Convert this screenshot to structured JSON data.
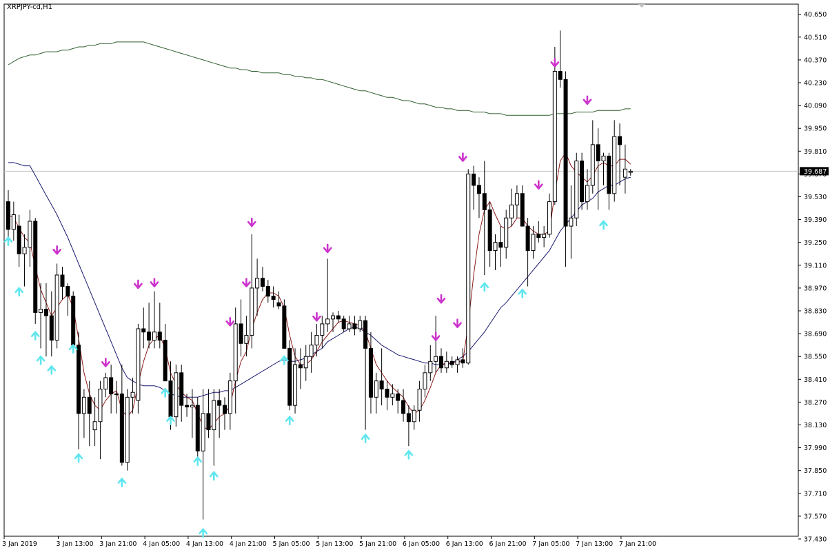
{
  "window": {
    "symbol_label": "XRPJPY-cd,H1"
  },
  "colors": {
    "background": "#ffffff",
    "candle": "#000000",
    "ma_fast": "#8b1a1a",
    "ma_mid": "#191970",
    "ma_slow": "#2f5e2f",
    "arrow_up": "#5fe6ee",
    "arrow_down": "#cc33cc",
    "bid_line": "#c0c0c0",
    "price_tag_bg": "#000000",
    "price_tag_text": "#ffffff"
  },
  "chart_data": {
    "type": "candlestick",
    "symbol": "XRPJPY-cd",
    "timeframe": "H1",
    "current_price_label": "39.687",
    "current_price": 39.687,
    "ylim": [
      37.43,
      40.67
    ],
    "y_ticks": [
      "40.650",
      "40.510",
      "40.370",
      "40.230",
      "40.090",
      "39.950",
      "39.810",
      "39.670",
      "39.530",
      "39.390",
      "39.250",
      "39.110",
      "38.970",
      "38.830",
      "38.690",
      "38.550",
      "38.410",
      "38.270",
      "38.130",
      "37.990",
      "37.850",
      "37.710",
      "37.570",
      "37.430"
    ],
    "x_ticks": [
      {
        "label": "3 Jan 2019",
        "index": 0
      },
      {
        "label": "3 Jan 13:00",
        "index": 10
      },
      {
        "label": "3 Jan 21:00",
        "index": 18
      },
      {
        "label": "4 Jan 05:00",
        "index": 26
      },
      {
        "label": "4 Jan 13:00",
        "index": 34
      },
      {
        "label": "4 Jan 21:00",
        "index": 42
      },
      {
        "label": "5 Jan 05:00",
        "index": 50
      },
      {
        "label": "5 Jan 13:00",
        "index": 58
      },
      {
        "label": "5 Jan 21:00",
        "index": 66
      },
      {
        "label": "6 Jan 05:00",
        "index": 74
      },
      {
        "label": "6 Jan 13:00",
        "index": 82
      },
      {
        "label": "6 Jan 21:00",
        "index": 90
      },
      {
        "label": "7 Jan 05:00",
        "index": 98
      },
      {
        "label": "7 Jan 13:00",
        "index": 106
      },
      {
        "label": "7 Jan 21:00",
        "index": 114
      }
    ],
    "candles": [
      [
        39.5,
        39.57,
        39.25,
        39.33
      ],
      [
        39.33,
        39.5,
        39.26,
        39.42
      ],
      [
        39.35,
        39.42,
        39.1,
        39.18
      ],
      [
        39.18,
        39.3,
        38.98,
        39.22
      ],
      [
        39.22,
        39.45,
        39.1,
        39.38
      ],
      [
        39.38,
        39.4,
        38.75,
        38.82
      ],
      [
        38.82,
        39.0,
        38.6,
        38.84
      ],
      [
        38.84,
        39.0,
        38.55,
        38.8
      ],
      [
        38.8,
        38.95,
        38.55,
        38.65
      ],
      [
        38.65,
        39.12,
        38.6,
        39.05
      ],
      [
        39.05,
        39.1,
        38.9,
        38.98
      ],
      [
        38.98,
        39.0,
        38.8,
        38.92
      ],
      [
        38.92,
        38.95,
        38.6,
        38.62
      ],
      [
        38.62,
        38.7,
        37.98,
        38.2
      ],
      [
        38.2,
        38.35,
        38.05,
        38.3
      ],
      [
        38.3,
        38.4,
        38.0,
        38.2
      ],
      [
        38.1,
        38.3,
        38.0,
        38.15
      ],
      [
        38.15,
        38.4,
        37.92,
        38.35
      ],
      [
        38.35,
        38.45,
        38.3,
        38.42
      ],
      [
        38.42,
        38.5,
        38.2,
        38.32
      ],
      [
        38.32,
        38.4,
        38.2,
        38.32
      ],
      [
        38.32,
        38.5,
        37.88,
        37.9
      ],
      [
        37.9,
        38.35,
        37.85,
        38.3
      ],
      [
        38.3,
        38.42,
        38.2,
        38.33
      ],
      [
        38.28,
        38.75,
        38.2,
        38.72
      ],
      [
        38.72,
        38.85,
        38.6,
        38.7
      ],
      [
        38.7,
        38.88,
        38.6,
        38.65
      ],
      [
        38.65,
        38.95,
        38.6,
        38.7
      ],
      [
        38.7,
        38.88,
        38.6,
        38.65
      ],
      [
        38.65,
        38.75,
        38.4,
        38.4
      ],
      [
        38.4,
        38.52,
        38.1,
        38.18
      ],
      [
        38.18,
        38.5,
        38.12,
        38.45
      ],
      [
        38.45,
        38.5,
        38.15,
        38.25
      ],
      [
        38.25,
        38.32,
        38.18,
        38.24
      ],
      [
        38.24,
        38.35,
        38.05,
        38.25
      ],
      [
        38.25,
        38.3,
        37.9,
        37.97
      ],
      [
        37.97,
        38.35,
        37.55,
        38.2
      ],
      [
        38.2,
        38.35,
        38.05,
        38.1
      ],
      [
        38.1,
        38.35,
        37.88,
        38.28
      ],
      [
        38.28,
        38.35,
        38.05,
        38.25
      ],
      [
        38.25,
        38.3,
        38.1,
        38.2
      ],
      [
        38.2,
        38.45,
        38.1,
        38.4
      ],
      [
        38.4,
        38.85,
        38.2,
        38.75
      ],
      [
        38.75,
        38.9,
        38.55,
        38.63
      ],
      [
        38.63,
        38.8,
        38.55,
        38.68
      ],
      [
        38.68,
        39.3,
        38.6,
        38.97
      ],
      [
        38.97,
        39.15,
        38.8,
        39.03
      ],
      [
        39.03,
        39.1,
        38.95,
        38.98
      ],
      [
        38.98,
        39.02,
        38.88,
        38.92
      ],
      [
        38.92,
        38.98,
        38.85,
        38.9
      ],
      [
        38.88,
        38.95,
        38.84,
        38.86
      ],
      [
        38.86,
        38.9,
        38.6,
        38.6
      ],
      [
        38.6,
        38.65,
        38.22,
        38.25
      ],
      [
        38.25,
        38.6,
        38.2,
        38.5
      ],
      [
        38.5,
        38.6,
        38.35,
        38.48
      ],
      [
        38.48,
        38.62,
        38.4,
        38.55
      ],
      [
        38.55,
        38.7,
        38.45,
        38.62
      ],
      [
        38.62,
        38.75,
        38.55,
        38.68
      ],
      [
        38.68,
        38.8,
        38.6,
        38.75
      ],
      [
        38.75,
        39.15,
        38.7,
        38.78
      ],
      [
        38.78,
        38.82,
        38.7,
        38.8
      ],
      [
        38.8,
        38.83,
        38.76,
        38.78
      ],
      [
        38.78,
        38.8,
        38.7,
        38.72
      ],
      [
        38.72,
        38.8,
        38.7,
        38.75
      ],
      [
        38.75,
        38.8,
        38.68,
        38.72
      ],
      [
        38.72,
        38.8,
        38.7,
        38.77
      ],
      [
        38.77,
        38.8,
        38.1,
        38.6
      ],
      [
        38.6,
        38.7,
        38.2,
        38.3
      ],
      [
        38.3,
        38.45,
        38.2,
        38.4
      ],
      [
        38.4,
        38.6,
        38.25,
        38.35
      ],
      [
        38.35,
        38.4,
        38.22,
        38.3
      ],
      [
        38.3,
        38.38,
        38.25,
        38.32
      ],
      [
        38.32,
        38.35,
        38.2,
        38.28
      ],
      [
        38.28,
        38.35,
        38.15,
        38.2
      ],
      [
        38.2,
        38.25,
        38.0,
        38.15
      ],
      [
        38.15,
        38.25,
        38.1,
        38.22
      ],
      [
        38.22,
        38.4,
        38.15,
        38.35
      ],
      [
        38.35,
        38.5,
        38.3,
        38.45
      ],
      [
        38.45,
        38.62,
        38.4,
        38.52
      ],
      [
        38.52,
        38.8,
        38.45,
        38.55
      ],
      [
        38.55,
        38.6,
        38.45,
        38.48
      ],
      [
        38.48,
        38.58,
        38.45,
        38.52
      ],
      [
        38.52,
        38.55,
        38.48,
        38.5
      ],
      [
        38.5,
        38.55,
        38.45,
        38.53
      ],
      [
        38.53,
        38.6,
        38.48,
        38.51
      ],
      [
        38.51,
        39.7,
        38.5,
        39.67
      ],
      [
        39.67,
        39.72,
        39.45,
        39.6
      ],
      [
        39.6,
        39.65,
        39.4,
        39.55
      ],
      [
        39.55,
        39.75,
        39.05,
        39.45
      ],
      [
        39.45,
        39.5,
        39.1,
        39.2
      ],
      [
        39.2,
        39.3,
        39.08,
        39.25
      ],
      [
        39.25,
        39.35,
        39.1,
        39.22
      ],
      [
        39.22,
        39.45,
        39.15,
        39.4
      ],
      [
        39.4,
        39.58,
        39.35,
        39.48
      ],
      [
        39.48,
        39.6,
        39.4,
        39.55
      ],
      [
        39.55,
        39.6,
        39.35,
        39.35
      ],
      [
        39.35,
        39.4,
        38.98,
        39.2
      ],
      [
        39.2,
        39.35,
        39.15,
        39.3
      ],
      [
        39.3,
        39.38,
        39.25,
        39.28
      ],
      [
        39.28,
        39.35,
        39.22,
        39.3
      ],
      [
        39.3,
        39.55,
        39.28,
        39.5
      ],
      [
        39.5,
        40.45,
        39.48,
        40.3
      ],
      [
        40.3,
        40.55,
        40.2,
        40.25
      ],
      [
        40.25,
        40.3,
        39.1,
        39.35
      ],
      [
        39.35,
        39.6,
        39.15,
        39.4
      ],
      [
        39.4,
        39.8,
        39.35,
        39.75
      ],
      [
        39.75,
        39.8,
        39.45,
        39.5
      ],
      [
        39.5,
        39.7,
        39.45,
        39.6
      ],
      [
        39.6,
        40.0,
        39.55,
        39.85
      ],
      [
        39.85,
        39.95,
        39.45,
        39.75
      ],
      [
        39.75,
        39.8,
        39.6,
        39.78
      ],
      [
        39.78,
        39.8,
        39.45,
        39.55
      ],
      [
        39.55,
        40.0,
        39.5,
        39.9
      ],
      [
        39.9,
        39.98,
        39.6,
        39.85
      ],
      [
        39.65,
        39.85,
        39.55,
        39.7
      ],
      [
        39.68,
        39.7,
        39.66,
        39.687
      ]
    ],
    "ma_fast": [
      39.42,
      39.4,
      39.34,
      39.28,
      39.25,
      39.1,
      38.96,
      38.88,
      38.8,
      38.85,
      38.9,
      38.93,
      38.85,
      38.66,
      38.45,
      38.32,
      38.25,
      38.22,
      38.28,
      38.32,
      38.34,
      38.22,
      38.18,
      38.22,
      38.38,
      38.52,
      38.62,
      38.66,
      38.68,
      38.6,
      38.45,
      38.38,
      38.33,
      38.3,
      38.28,
      38.2,
      38.12,
      38.1,
      38.14,
      38.18,
      38.2,
      38.25,
      38.4,
      38.52,
      38.58,
      38.72,
      38.82,
      38.9,
      38.94,
      38.94,
      38.92,
      38.85,
      38.68,
      38.55,
      38.5,
      38.5,
      38.53,
      38.58,
      38.64,
      38.68,
      38.72,
      38.76,
      38.77,
      38.76,
      38.75,
      38.74,
      38.7,
      38.6,
      38.5,
      38.45,
      38.4,
      38.36,
      38.33,
      38.3,
      38.24,
      38.2,
      38.22,
      38.28,
      38.36,
      38.45,
      38.5,
      38.51,
      38.51,
      38.52,
      38.52,
      38.75,
      39.05,
      39.3,
      39.45,
      39.5,
      39.42,
      39.35,
      39.33,
      39.35,
      39.4,
      39.4,
      39.35,
      39.32,
      39.3,
      39.3,
      39.32,
      39.55,
      39.75,
      39.8,
      39.72,
      39.68,
      39.65,
      39.62,
      39.66,
      39.72,
      39.74,
      39.72,
      39.72,
      39.76,
      39.76,
      39.73
    ],
    "ma_mid": [
      39.74,
      39.74,
      39.73,
      39.72,
      39.72,
      39.66,
      39.6,
      39.54,
      39.48,
      39.42,
      39.35,
      39.28,
      39.2,
      39.12,
      39.04,
      38.96,
      38.88,
      38.8,
      38.72,
      38.64,
      38.56,
      38.48,
      38.42,
      38.4,
      38.38,
      38.37,
      38.37,
      38.37,
      38.36,
      38.34,
      38.32,
      38.31,
      38.3,
      38.3,
      38.3,
      38.3,
      38.31,
      38.32,
      38.33,
      38.33,
      38.34,
      38.34,
      38.36,
      38.38,
      38.4,
      38.42,
      38.44,
      38.46,
      38.48,
      38.5,
      38.52,
      38.53,
      38.52,
      38.52,
      38.53,
      38.54,
      38.56,
      38.58,
      38.6,
      38.64,
      38.66,
      38.68,
      38.7,
      38.72,
      38.73,
      38.72,
      38.7,
      38.68,
      38.65,
      38.62,
      38.6,
      38.58,
      38.56,
      38.55,
      38.54,
      38.53,
      38.52,
      38.51,
      38.51,
      38.5,
      38.5,
      38.5,
      38.51,
      38.53,
      38.55,
      38.58,
      38.62,
      38.66,
      38.7,
      38.75,
      38.8,
      38.85,
      38.88,
      38.92,
      38.96,
      39.0,
      39.04,
      39.08,
      39.12,
      39.16,
      39.2,
      39.26,
      39.32,
      39.36,
      39.4,
      39.44,
      39.48,
      39.5,
      39.52,
      39.56,
      39.58,
      39.6,
      39.6,
      39.62,
      39.64,
      39.65
    ],
    "ma_slow": [
      40.34,
      40.36,
      40.38,
      40.39,
      40.4,
      40.4,
      40.41,
      40.42,
      40.42,
      40.42,
      40.43,
      40.43,
      40.44,
      40.45,
      40.45,
      40.46,
      40.46,
      40.47,
      40.47,
      40.47,
      40.48,
      40.48,
      40.48,
      40.48,
      40.48,
      40.48,
      40.47,
      40.46,
      40.45,
      40.44,
      40.43,
      40.42,
      40.41,
      40.4,
      40.39,
      40.38,
      40.37,
      40.36,
      40.35,
      40.34,
      40.33,
      40.32,
      40.32,
      40.31,
      40.31,
      40.3,
      40.3,
      40.29,
      40.29,
      40.29,
      40.29,
      40.28,
      40.28,
      40.27,
      40.27,
      40.26,
      40.26,
      40.25,
      40.25,
      40.24,
      40.23,
      40.22,
      40.21,
      40.2,
      40.19,
      40.18,
      40.18,
      40.17,
      40.16,
      40.15,
      40.14,
      40.14,
      40.13,
      40.12,
      40.12,
      40.11,
      40.1,
      40.1,
      40.09,
      40.08,
      40.08,
      40.07,
      40.07,
      40.06,
      40.06,
      40.06,
      40.05,
      40.05,
      40.05,
      40.04,
      40.04,
      40.04,
      40.03,
      40.03,
      40.03,
      40.03,
      40.03,
      40.03,
      40.03,
      40.03,
      40.03,
      40.04,
      40.04,
      40.04,
      40.04,
      40.05,
      40.05,
      40.05,
      40.05,
      40.06,
      40.06,
      40.06,
      40.06,
      40.06,
      40.07,
      40.07
    ],
    "signals_up": [
      [
        0,
        39.28
      ],
      [
        2,
        38.97
      ],
      [
        5,
        38.7
      ],
      [
        6,
        38.55
      ],
      [
        8,
        38.49
      ],
      [
        13,
        37.95
      ],
      [
        12,
        38.62
      ],
      [
        21,
        37.8
      ],
      [
        29,
        38.35
      ],
      [
        30,
        38.18
      ],
      [
        35,
        37.93
      ],
      [
        36,
        37.49
      ],
      [
        38,
        37.84
      ],
      [
        52,
        38.18
      ],
      [
        51,
        38.55
      ],
      [
        66,
        38.07
      ],
      [
        74,
        37.97
      ],
      [
        88,
        39.0
      ],
      [
        95,
        38.96
      ],
      [
        110,
        39.38
      ]
    ],
    "signals_down": [
      [
        9,
        39.18
      ],
      [
        18,
        38.49
      ],
      [
        24,
        38.97
      ],
      [
        27,
        38.98
      ],
      [
        41,
        38.74
      ],
      [
        44,
        38.98
      ],
      [
        45,
        39.35
      ],
      [
        57,
        38.77
      ],
      [
        59,
        39.19
      ],
      [
        79,
        38.65
      ],
      [
        80,
        38.88
      ],
      [
        83,
        38.73
      ],
      [
        84,
        39.75
      ],
      [
        98,
        39.58
      ],
      [
        101,
        40.33
      ],
      [
        107,
        40.1
      ]
    ]
  }
}
